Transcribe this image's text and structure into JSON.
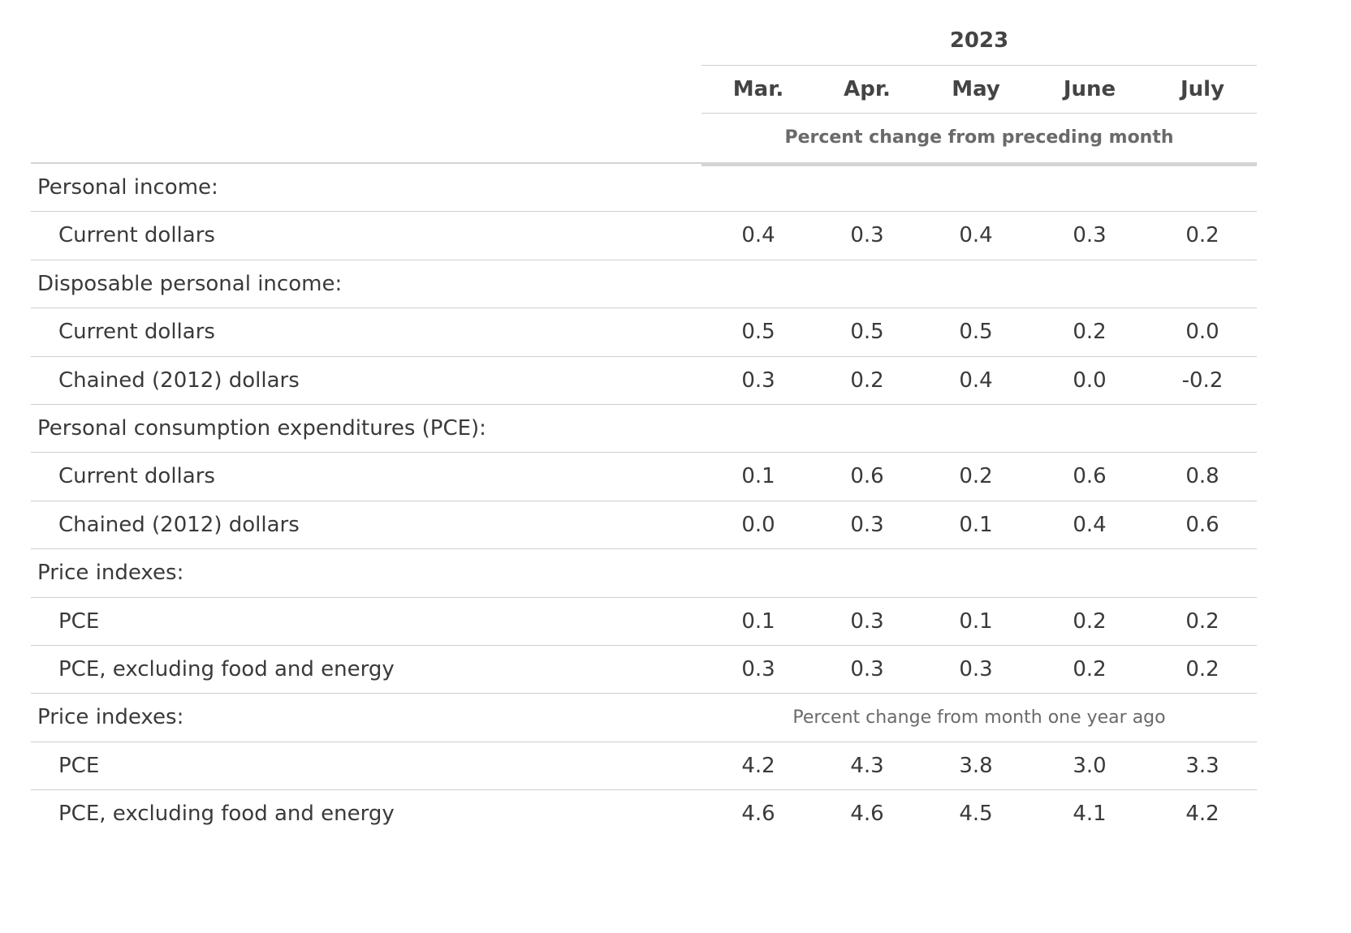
{
  "table": {
    "year": "2023",
    "months": [
      "Mar.",
      "Apr.",
      "May",
      "June",
      "July"
    ],
    "caption_mom": "Percent change from preceding month",
    "caption_yoy": "Percent change from month one year ago",
    "rows": [
      {
        "label": "Personal income:",
        "type": "section"
      },
      {
        "label": "Current dollars",
        "type": "sub",
        "values": [
          "0.4",
          "0.3",
          "0.4",
          "0.3",
          "0.2"
        ]
      },
      {
        "label": "Disposable personal income:",
        "type": "section"
      },
      {
        "label": "Current dollars",
        "type": "sub",
        "values": [
          "0.5",
          "0.5",
          "0.5",
          "0.2",
          "0.0"
        ]
      },
      {
        "label": "Chained (2012) dollars",
        "type": "sub",
        "values": [
          "0.3",
          "0.2",
          "0.4",
          "0.0",
          "-0.2"
        ]
      },
      {
        "label": "Personal consumption expenditures (PCE):",
        "type": "section"
      },
      {
        "label": "Current dollars",
        "type": "sub",
        "values": [
          "0.1",
          "0.6",
          "0.2",
          "0.6",
          "0.8"
        ]
      },
      {
        "label": "Chained (2012) dollars",
        "type": "sub",
        "values": [
          "0.0",
          "0.3",
          "0.1",
          "0.4",
          "0.6"
        ]
      },
      {
        "label": "Price indexes:",
        "type": "section"
      },
      {
        "label": "PCE",
        "type": "sub",
        "values": [
          "0.1",
          "0.3",
          "0.1",
          "0.2",
          "0.2"
        ]
      },
      {
        "label": "PCE, excluding food and energy",
        "type": "sub",
        "values": [
          "0.3",
          "0.3",
          "0.3",
          "0.2",
          "0.2"
        ]
      },
      {
        "label": "Price indexes:",
        "type": "section-note"
      },
      {
        "label": "PCE",
        "type": "sub",
        "values": [
          "4.2",
          "4.3",
          "3.8",
          "3.0",
          "3.3"
        ]
      },
      {
        "label": "PCE, excluding food and energy",
        "type": "sub",
        "values": [
          "4.6",
          "4.6",
          "4.5",
          "4.1",
          "4.2"
        ]
      }
    ]
  }
}
